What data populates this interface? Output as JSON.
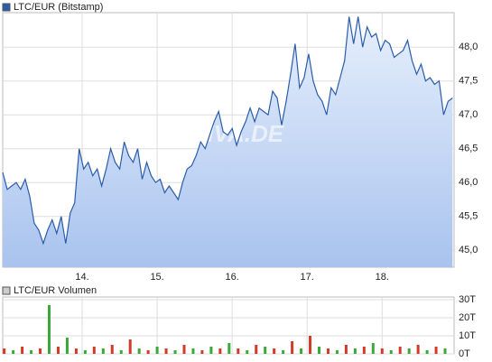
{
  "chart_data": [
    {
      "type": "line",
      "title": "LTC/EUR (Bitstamp)",
      "watermark": "ARIVA.DE",
      "area": true,
      "grid": true,
      "x": [
        12.94,
        13.0,
        13.06,
        13.12,
        13.18,
        13.24,
        13.3,
        13.36,
        13.42,
        13.48,
        13.54,
        13.6,
        13.66,
        13.72,
        13.78,
        13.84,
        13.9,
        13.96,
        14.02,
        14.08,
        14.14,
        14.2,
        14.26,
        14.32,
        14.38,
        14.44,
        14.5,
        14.56,
        14.62,
        14.68,
        14.74,
        14.8,
        14.86,
        14.92,
        14.98,
        15.04,
        15.1,
        15.16,
        15.22,
        15.28,
        15.34,
        15.4,
        15.46,
        15.52,
        15.58,
        15.64,
        15.7,
        15.76,
        15.82,
        15.88,
        15.94,
        16.0,
        16.06,
        16.12,
        16.18,
        16.24,
        16.3,
        16.36,
        16.42,
        16.48,
        16.54,
        16.6,
        16.66,
        16.72,
        16.78,
        16.84,
        16.9,
        16.96,
        17.02,
        17.08,
        17.14,
        17.2,
        17.26,
        17.32,
        17.38,
        17.44,
        17.5,
        17.56,
        17.62,
        17.68,
        17.74,
        17.8,
        17.86,
        17.92,
        17.98,
        18.04,
        18.1,
        18.16,
        18.22,
        18.28,
        18.34,
        18.4,
        18.46,
        18.52,
        18.58,
        18.64,
        18.7,
        18.76,
        18.82,
        18.88,
        18.94
      ],
      "series": [
        {
          "name": "LTC/EUR (Bitstamp)",
          "color": "#2a5caa",
          "values": [
            46.15,
            45.9,
            45.95,
            46.0,
            45.9,
            46.05,
            45.8,
            45.4,
            45.3,
            45.1,
            45.3,
            45.45,
            45.25,
            45.5,
            45.1,
            45.55,
            45.7,
            46.5,
            46.2,
            46.3,
            46.1,
            46.2,
            45.95,
            46.2,
            46.5,
            46.3,
            46.2,
            46.6,
            46.4,
            46.3,
            46.5,
            46.05,
            46.3,
            46.1,
            46.0,
            46.05,
            45.85,
            45.95,
            45.85,
            45.75,
            46.0,
            46.2,
            46.25,
            46.4,
            46.6,
            46.5,
            46.7,
            46.9,
            47.05,
            46.75,
            46.7,
            46.8,
            46.55,
            46.75,
            46.9,
            47.1,
            46.9,
            47.1,
            47.05,
            47.0,
            47.35,
            47.25,
            46.85,
            47.2,
            47.6,
            48.05,
            47.4,
            47.55,
            47.9,
            47.5,
            47.3,
            47.2,
            47.0,
            47.4,
            47.3,
            47.55,
            47.8,
            48.45,
            48.05,
            48.45,
            48.0,
            48.3,
            48.15,
            48.2,
            47.95,
            48.1,
            48.05,
            47.85,
            47.9,
            47.95,
            48.1,
            47.8,
            47.6,
            47.75,
            47.5,
            47.55,
            47.45,
            47.5,
            47.0,
            47.2,
            47.25
          ]
        }
      ],
      "xlim": [
        12.94,
        18.96
      ],
      "xticks": [
        {
          "value": 14,
          "label": "14."
        },
        {
          "value": 15,
          "label": "15."
        },
        {
          "value": 16,
          "label": "16."
        },
        {
          "value": 17,
          "label": "17."
        },
        {
          "value": 18,
          "label": "18."
        }
      ],
      "ylim": [
        44.75,
        48.51
      ],
      "yticks": [
        {
          "value": 45,
          "label": "45,0"
        },
        {
          "value": 45.5,
          "label": "45,5"
        },
        {
          "value": 46,
          "label": "46,0"
        },
        {
          "value": 46.5,
          "label": "46,5"
        },
        {
          "value": 47,
          "label": "47,0"
        },
        {
          "value": 47.5,
          "label": "47,5"
        },
        {
          "value": 48,
          "label": "48,0"
        }
      ]
    },
    {
      "type": "bar",
      "title": "LTC/EUR Volumen",
      "grid": true,
      "colors": [
        "#d23a2a",
        "#3aa83a"
      ],
      "x": [
        12.96,
        13.08,
        13.2,
        13.32,
        13.44,
        13.56,
        13.68,
        13.8,
        13.92,
        14.04,
        14.16,
        14.28,
        14.4,
        14.52,
        14.64,
        14.76,
        14.88,
        15.0,
        15.12,
        15.24,
        15.36,
        15.48,
        15.6,
        15.72,
        15.84,
        15.96,
        16.08,
        16.2,
        16.32,
        16.44,
        16.56,
        16.68,
        16.8,
        16.92,
        17.04,
        17.16,
        17.28,
        17.4,
        17.52,
        17.64,
        17.76,
        17.88,
        18.0,
        18.12,
        18.24,
        18.36,
        18.48,
        18.6,
        18.72,
        18.84
      ],
      "series": [
        {
          "name": "LTC/EUR Volumen",
          "color": "#888888",
          "values": [
            3,
            2,
            4,
            2,
            3,
            27,
            4,
            9,
            3,
            2,
            4,
            3,
            5,
            2,
            8,
            3,
            2,
            4,
            3,
            2,
            5,
            3,
            2,
            4,
            3,
            6,
            3,
            2,
            5,
            4,
            3,
            2,
            7,
            3,
            10,
            4,
            3,
            2,
            5,
            3,
            4,
            6,
            3,
            2,
            4,
            3,
            5,
            2,
            4,
            3
          ]
        }
      ],
      "xlim": [
        12.94,
        18.96
      ],
      "xticks": [
        14,
        15,
        16,
        17,
        18
      ],
      "ylim": [
        0,
        31.5
      ],
      "yticks": [
        {
          "value": 0,
          "label": "0T"
        },
        {
          "value": 10,
          "label": "10T"
        },
        {
          "value": 20,
          "label": "20T"
        },
        {
          "value": 30,
          "label": "30T"
        }
      ]
    }
  ]
}
